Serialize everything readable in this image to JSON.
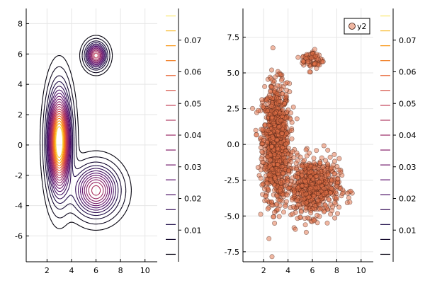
{
  "chart_data": [
    {
      "type": "contour",
      "xlim": [
        0.3,
        11.0
      ],
      "ylim": [
        -7.7,
        9.0
      ],
      "xticks": [
        2,
        4,
        6,
        8,
        10
      ],
      "xtick_labels": [
        "2",
        "4",
        "6",
        "8",
        "10"
      ],
      "yticks": [
        -6,
        -4,
        -2,
        0,
        2,
        4,
        6,
        8
      ],
      "ytick_labels": [
        "-6",
        "-4",
        "-2",
        "0",
        "2",
        "4",
        "6",
        "8"
      ],
      "grid": true,
      "legend": false,
      "components": [
        {
          "weight": 0.6,
          "mean": [
            3.0,
            0.2
          ],
          "sd": [
            0.55,
            2.0
          ]
        },
        {
          "weight": 0.32,
          "mean": [
            6.0,
            -3.0
          ],
          "sd": [
            1.1,
            1.0
          ]
        },
        {
          "weight": 0.08,
          "mean": [
            6.0,
            5.9
          ],
          "sd": [
            0.5,
            0.5
          ]
        }
      ],
      "levels": [
        0.0015,
        0.004,
        0.008,
        0.012,
        0.016,
        0.02,
        0.024,
        0.028,
        0.032,
        0.036,
        0.04,
        0.044,
        0.048,
        0.052,
        0.056,
        0.06,
        0.064,
        0.068,
        0.072,
        0.076
      ],
      "colorbar": {
        "min": 0.0,
        "max": 0.08,
        "ticks": [
          0.01,
          0.02,
          0.03,
          0.04,
          0.05,
          0.06,
          0.07
        ],
        "tick_labels": [
          "0.01",
          "0.02",
          "0.03",
          "0.04",
          "0.05",
          "0.06",
          "0.07"
        ]
      }
    },
    {
      "type": "scatter",
      "xlim": [
        0.3,
        11.0
      ],
      "ylim": [
        -8.2,
        9.5
      ],
      "xticks": [
        2,
        4,
        6,
        8,
        10
      ],
      "xtick_labels": [
        "2",
        "4",
        "6",
        "8",
        "10"
      ],
      "yticks": [
        -7.5,
        -5.0,
        -2.5,
        0.0,
        2.5,
        5.0,
        7.5
      ],
      "ytick_labels": [
        "-7.5",
        "-5.0",
        "-2.5",
        "0.0",
        "2.5",
        "5.0",
        "7.5"
      ],
      "grid": true,
      "legend_position": "top-right",
      "series": [
        {
          "name": "y2",
          "color": "#e26f46",
          "edge_color": "#3a1a10",
          "clusters": [
            {
              "n": 1000,
              "mean": [
                3.0,
                0.2
              ],
              "sd": [
                0.55,
                2.0
              ]
            },
            {
              "n": 640,
              "mean": [
                6.0,
                -3.0
              ],
              "sd": [
                1.1,
                1.0
              ]
            },
            {
              "n": 70,
              "mean": [
                6.0,
                5.9
              ],
              "sd": [
                0.45,
                0.35
              ]
            }
          ]
        }
      ],
      "colorbar": {
        "min": 0.0,
        "max": 0.08,
        "ticks": [
          0.01,
          0.02,
          0.03,
          0.04,
          0.05,
          0.06,
          0.07
        ],
        "tick_labels": [
          "0.01",
          "0.02",
          "0.03",
          "0.04",
          "0.05",
          "0.06",
          "0.07"
        ]
      }
    }
  ]
}
